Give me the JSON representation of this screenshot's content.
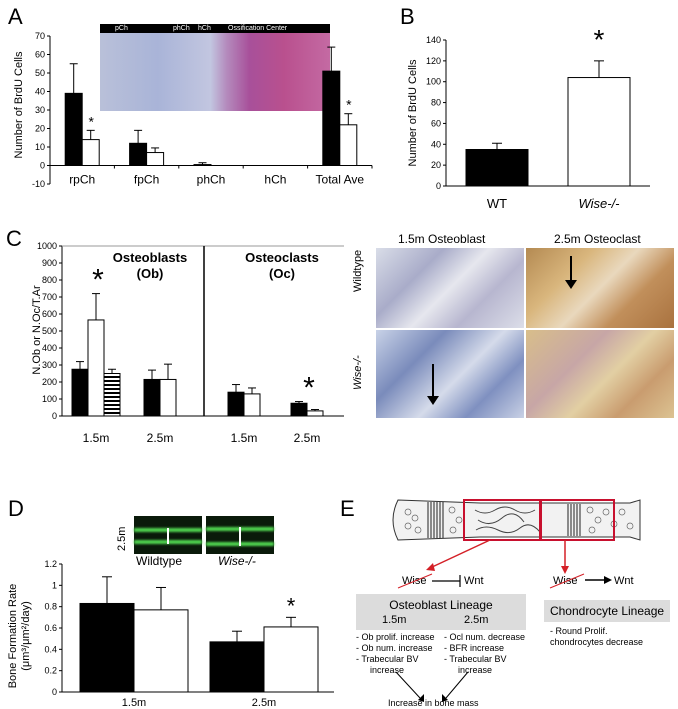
{
  "panels": {
    "a": {
      "letter": "A",
      "ylabel": "Number of BrdU Cells",
      "histology_labels": [
        "pCh",
        "phCh",
        "hCh",
        "Ossification Center"
      ],
      "star": "*"
    },
    "b": {
      "letter": "B",
      "ylabel": "Number of BrdU Cells",
      "star": "*"
    },
    "c": {
      "letter": "C",
      "ylabel": "N.Ob or N.Oc/T.Ar",
      "ob_title": "Osteoblasts",
      "ob_sub": "(Ob)",
      "oc_title": "Osteoclasts",
      "oc_sub": "(Oc)",
      "star": "*",
      "micro_col1": "1.5m Osteoblast",
      "micro_col2": "2.5m Osteoclast",
      "micro_row1": "Wildtype",
      "micro_row2": "Wise-/-"
    },
    "d": {
      "letter": "D",
      "ylabel_line1": "Bone Formation Rate",
      "ylabel_line2": "(μm³/μm²/day)",
      "age_label": "2.5m",
      "img_label_wt": "Wildtype",
      "img_label_ko": "Wise-/-",
      "star": "*"
    },
    "e": {
      "letter": "E",
      "left_wise": "Wise",
      "left_wnt": "Wnt",
      "right_wise": "Wise",
      "right_wnt": "Wnt",
      "ob_lineage": "Osteoblast Lineage",
      "col_15": "1.5m",
      "col_25": "2.5m",
      "notes_15": [
        "- Ob prolif. increase",
        "- Ob num. increase",
        "- Trabecular BV",
        "   increase"
      ],
      "notes_25": [
        "- Ocl num. decrease",
        "- BFR increase",
        "- Trabecular BV",
        "   increase"
      ],
      "result": "Increase in bone mass",
      "ch_lineage": "Chondrocyte Lineage",
      "ch_notes": [
        "- Round Prolif.",
        "  chondrocytes decrease"
      ]
    }
  },
  "chart_data": [
    {
      "panel": "A",
      "type": "bar",
      "categories": [
        "rpCh",
        "fpCh",
        "phCh",
        "hCh",
        "Total Ave"
      ],
      "series": [
        {
          "values": [
            39,
            12,
            0.5,
            0,
            51
          ],
          "errors": [
            16,
            7,
            1,
            0,
            13
          ],
          "color": "#000000"
        },
        {
          "values": [
            14,
            7,
            0,
            0,
            22
          ],
          "errors": [
            5,
            2.5,
            0,
            0,
            6
          ],
          "color": "#ffffff"
        }
      ],
      "ylim": [
        -10,
        70
      ],
      "yticks": [
        -10,
        0,
        10,
        20,
        30,
        40,
        50,
        60,
        70
      ],
      "stars_on": [
        0,
        4
      ]
    },
    {
      "panel": "B",
      "type": "bar",
      "categories": [
        "WT",
        "Wise-/-"
      ],
      "values": [
        35,
        104
      ],
      "errors": [
        6,
        16
      ],
      "colors": [
        "#000000",
        "#ffffff"
      ],
      "ylim": [
        0,
        140
      ],
      "yticks": [
        0,
        20,
        40,
        60,
        80,
        100,
        120,
        140
      ]
    },
    {
      "panel": "C",
      "type": "bar",
      "groups": [
        "1.5m",
        "2.5m",
        "1.5m",
        "2.5m"
      ],
      "series": [
        {
          "values": [
            275,
            215,
            140,
            75
          ],
          "errors": [
            45,
            55,
            45,
            10
          ],
          "color": "#000000"
        },
        {
          "values": [
            565,
            215,
            130,
            30
          ],
          "errors": [
            155,
            90,
            35,
            8
          ],
          "color": "#ffffff"
        },
        {
          "values": [
            250,
            null,
            null,
            null
          ],
          "errors": [
            25,
            null,
            null,
            null
          ],
          "color": "striped"
        }
      ],
      "ylim": [
        0,
        1000
      ],
      "yticks": [
        0,
        100,
        200,
        300,
        400,
        500,
        600,
        700,
        800,
        900,
        1000
      ]
    },
    {
      "panel": "D",
      "type": "bar",
      "categories": [
        "1.5m",
        "2.5m"
      ],
      "series": [
        {
          "values": [
            0.83,
            0.47
          ],
          "errors": [
            0.25,
            0.1
          ],
          "color": "#000000"
        },
        {
          "values": [
            0.77,
            0.61
          ],
          "errors": [
            0.21,
            0.09
          ],
          "color": "#ffffff"
        }
      ],
      "ylim": [
        0,
        1.2
      ],
      "yticks": [
        0,
        0.2,
        0.4,
        0.6,
        0.8,
        1,
        1.2
      ]
    }
  ]
}
